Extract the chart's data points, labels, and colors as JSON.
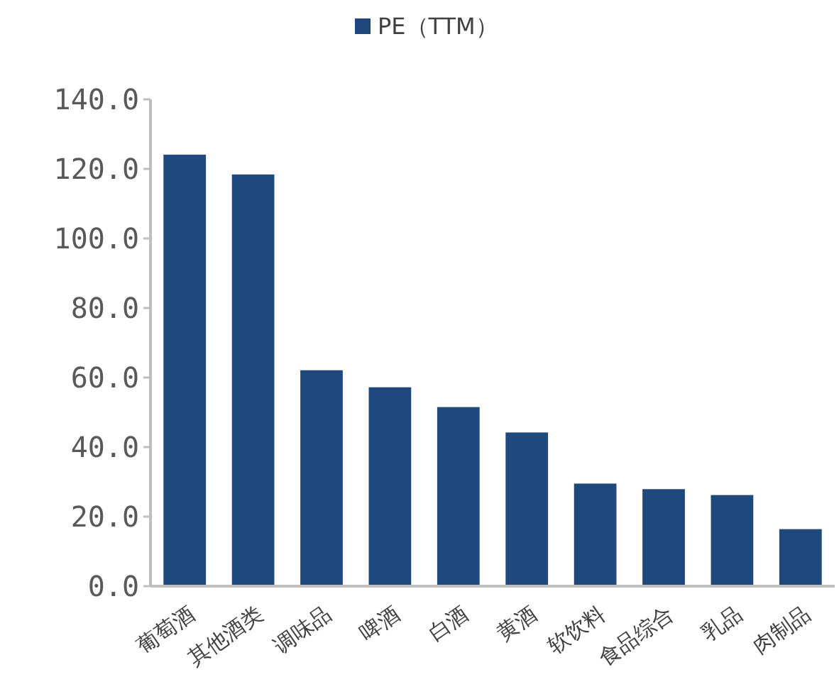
{
  "chart_data": {
    "type": "bar",
    "categories": [
      "葡萄酒",
      "其他酒类",
      "调味品",
      "啤酒",
      "白酒",
      "黄酒",
      "软饮料",
      "食品综合",
      "乳品",
      "肉制品"
    ],
    "series": [
      {
        "name": "PE（TTM）",
        "color": "#1f497d",
        "values": [
          124.1,
          118.4,
          62.1,
          57.2,
          51.5,
          44.2,
          29.5,
          27.9,
          26.2,
          16.4
        ]
      }
    ],
    "ylim": [
      0,
      140
    ],
    "yticks": [
      {
        "value": 0,
        "label": "0.0"
      },
      {
        "value": 20,
        "label": "20.0"
      },
      {
        "value": 40,
        "label": "40.0"
      },
      {
        "value": 60,
        "label": "60.0"
      },
      {
        "value": 80,
        "label": "80.0"
      },
      {
        "value": 100,
        "label": "100.0"
      },
      {
        "value": 120,
        "label": "120.0"
      },
      {
        "value": 140,
        "label": "140.0"
      }
    ],
    "grid": false,
    "legend": "top"
  }
}
